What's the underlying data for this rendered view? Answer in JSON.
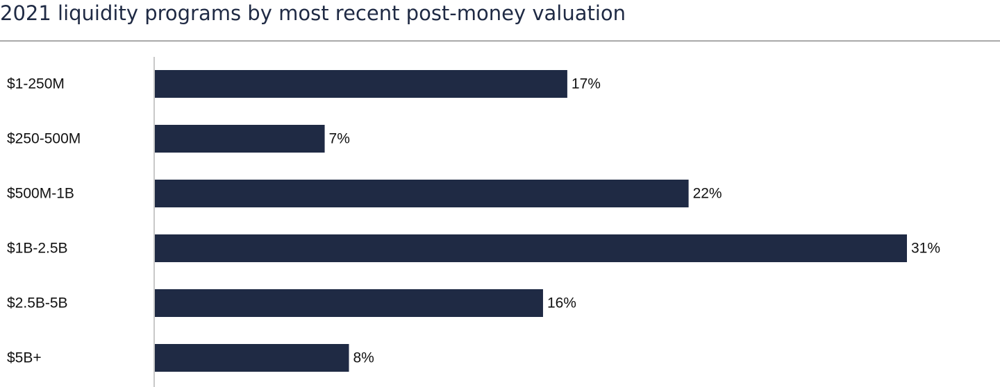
{
  "chart_data": {
    "type": "bar",
    "orientation": "horizontal",
    "title": "2021 liquidity programs by most recent post-money valuation",
    "categories": [
      "$1-250M",
      "$250-500M",
      "$500M-1B",
      "$1B-2.5B",
      "$2.5B-5B",
      "$5B+"
    ],
    "values": [
      17,
      7,
      22,
      31,
      16,
      8
    ],
    "value_labels": [
      "17%",
      "7%",
      "22%",
      "31%",
      "16%",
      "8%"
    ],
    "value_unit": "%",
    "xlabel": "",
    "ylabel": "",
    "xlim": [
      0,
      31
    ],
    "grid": false,
    "legend": "none",
    "bar_color": "#1f2a44"
  }
}
